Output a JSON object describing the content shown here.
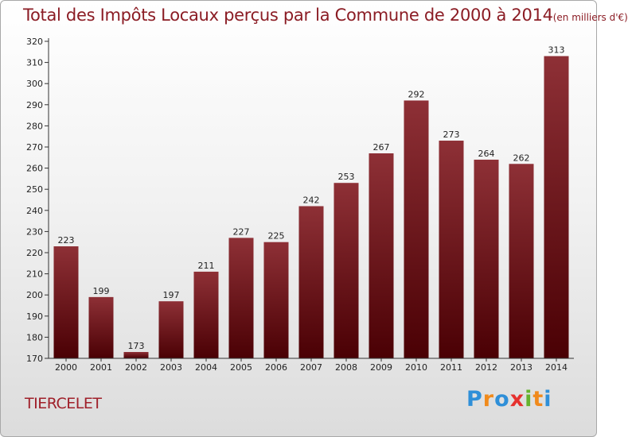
{
  "title": {
    "main": "Total des Impôts Locaux perçus par la Commune de 2000 à 2014",
    "unit": "(en milliers d'€)"
  },
  "commune": "TIERCELET",
  "logo": {
    "letters": [
      "P",
      "r",
      "o",
      "x",
      "i",
      "t",
      "i"
    ],
    "colors": [
      "#2f8fd8",
      "#f08a1c",
      "#2f8fd8",
      "#e6312e",
      "#66b32e",
      "#f08a1c",
      "#2f8fd8"
    ]
  },
  "chart_data": {
    "type": "bar",
    "title": "Total des Impôts Locaux perçus par la Commune de 2000 à 2014 (en milliers d'€)",
    "xlabel": "",
    "ylabel": "",
    "categories": [
      "2000",
      "2001",
      "2002",
      "2003",
      "2004",
      "2005",
      "2006",
      "2007",
      "2008",
      "2009",
      "2010",
      "2011",
      "2012",
      "2013",
      "2014"
    ],
    "values": [
      223,
      199,
      173,
      197,
      211,
      227,
      225,
      242,
      253,
      267,
      292,
      273,
      264,
      262,
      313
    ],
    "ylim": [
      170,
      320
    ],
    "yticks": [
      170,
      180,
      190,
      200,
      210,
      220,
      230,
      240,
      250,
      260,
      270,
      280,
      290,
      300,
      310,
      320
    ],
    "grid": false,
    "bar_color_top": "#8e3036",
    "bar_color_bottom": "#4a0004"
  }
}
